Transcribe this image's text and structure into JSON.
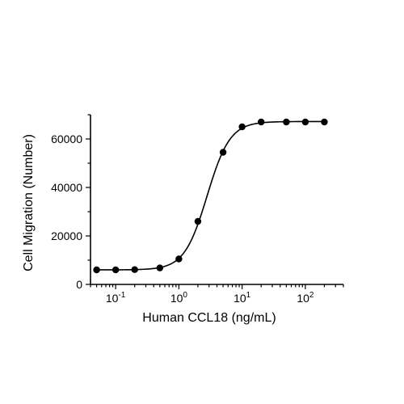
{
  "chart_data": {
    "type": "scatter",
    "title": "",
    "xlabel": "Human CCL18 (ng/mL)",
    "ylabel": "Cell Migration (Number)",
    "x_scale": "log10",
    "xlim": [
      0.04,
      400
    ],
    "ylim": [
      0,
      70000
    ],
    "x_ticks": [
      {
        "value": 0.1,
        "base": "10",
        "exp": "-1"
      },
      {
        "value": 1,
        "base": "10",
        "exp": "0"
      },
      {
        "value": 10,
        "base": "10",
        "exp": "1"
      },
      {
        "value": 100,
        "base": "10",
        "exp": "2"
      }
    ],
    "y_ticks": [
      0,
      20000,
      40000,
      60000
    ],
    "y_tick_labels": [
      "0",
      "20000",
      "40000",
      "60000"
    ],
    "grid": false,
    "legend": "none",
    "series": [
      {
        "x": [
          0.05,
          0.1,
          0.2,
          0.5,
          1,
          2,
          5,
          10,
          20,
          50,
          100,
          200
        ],
        "y": [
          6000,
          6000,
          6100,
          6800,
          10500,
          26000,
          54500,
          65000,
          67000,
          67000,
          67000,
          67000
        ],
        "marker": "circle",
        "color": "#000000",
        "fit_curve": {
          "type": "4PL",
          "bottom": 6000,
          "top": 67200,
          "ec50": 2.8,
          "hill": 2.4
        }
      }
    ]
  }
}
